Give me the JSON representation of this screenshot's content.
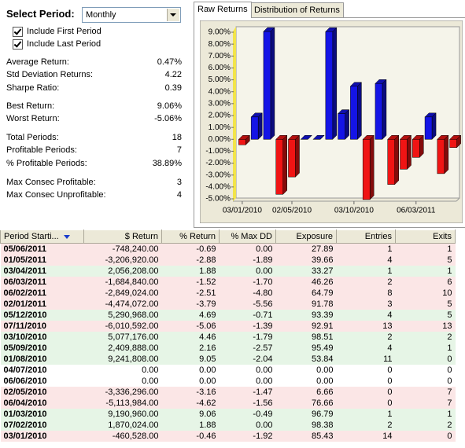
{
  "controls": {
    "period_label": "Select Period:",
    "period_value": "Monthly",
    "checkboxes": [
      "Include First Period",
      "Include Last Period"
    ]
  },
  "stats": [
    [
      [
        "Average Return:",
        "0.47%"
      ],
      [
        "Std Deviation Returns:",
        "4.22"
      ],
      [
        "Sharpe Ratio:",
        "0.39"
      ]
    ],
    [
      [
        "Best Return:",
        "9.06%"
      ],
      [
        "Worst Return:",
        "-5.06%"
      ]
    ],
    [
      [
        "Total Periods:",
        "18"
      ],
      [
        "Profitable Periods:",
        "7"
      ],
      [
        "% Profitable Periods:",
        "38.89%"
      ]
    ],
    [
      [
        "Max Consec Profitable:",
        "3"
      ],
      [
        "Max Consec Unprofitable:",
        "4"
      ]
    ]
  ],
  "tabs": [
    "Raw Returns",
    "Distribution of Returns"
  ],
  "chart_data": {
    "type": "bar3d",
    "categories": [
      "03/01/2010",
      null,
      null,
      null,
      "02/05/2010",
      null,
      null,
      null,
      null,
      "03/10/2010",
      null,
      null,
      null,
      null,
      "06/03/2011",
      null,
      null,
      null
    ],
    "values": [
      -0.46,
      1.88,
      9.06,
      -4.62,
      -3.16,
      0,
      0,
      9.05,
      2.16,
      4.46,
      -5.06,
      4.69,
      -3.79,
      -2.51,
      -1.52,
      1.88,
      -2.88,
      -0.69
    ],
    "positive_color": "#1414e6",
    "negative_color": "#f01414",
    "ylim": [
      -5,
      9
    ],
    "yticks": [
      {
        "value": 9,
        "label": "9.00%"
      },
      {
        "value": 8,
        "label": "8.00%"
      },
      {
        "value": 7,
        "label": "7.00%"
      },
      {
        "value": 6,
        "label": "6.00%"
      },
      {
        "value": 5,
        "label": "5.00%"
      },
      {
        "value": 4,
        "label": "4.00%"
      },
      {
        "value": 3,
        "label": "3.00%"
      },
      {
        "value": 2,
        "label": "2.00%"
      },
      {
        "value": 1,
        "label": "1.00%"
      },
      {
        "value": 0,
        "label": "0.00%"
      },
      {
        "value": -1,
        "label": "-1.00%"
      },
      {
        "value": -2,
        "label": "-2.00%"
      },
      {
        "value": -3,
        "label": "-3.00%"
      },
      {
        "value": -4,
        "label": "-4.00%"
      },
      {
        "value": -5,
        "label": "-5.00%"
      }
    ]
  },
  "table": {
    "columns": [
      "Period Starti...",
      "$ Return",
      "% Return",
      "% Max DD",
      "Exposure",
      "Entries",
      "Exits"
    ],
    "rows": [
      [
        "05/06/2011",
        "-748,240.00",
        "-0.69",
        "0.00",
        "27.89",
        "1",
        "1"
      ],
      [
        "01/05/2011",
        "-3,206,920.00",
        "-2.88",
        "-1.89",
        "39.66",
        "4",
        "5"
      ],
      [
        "03/04/2011",
        "2,056,208.00",
        "1.88",
        "0.00",
        "33.27",
        "1",
        "1"
      ],
      [
        "06/03/2011",
        "-1,684,840.00",
        "-1.52",
        "-1.70",
        "46.26",
        "2",
        "6"
      ],
      [
        "06/02/2011",
        "-2,849,024.00",
        "-2.51",
        "-4.80",
        "64.79",
        "8",
        "10"
      ],
      [
        "02/01/2011",
        "-4,474,072.00",
        "-3.79",
        "-5.56",
        "91.78",
        "3",
        "5"
      ],
      [
        "05/12/2010",
        "5,290,968.00",
        "4.69",
        "-0.71",
        "93.39",
        "4",
        "5"
      ],
      [
        "07/11/2010",
        "-6,010,592.00",
        "-5.06",
        "-1.39",
        "92.91",
        "13",
        "13"
      ],
      [
        "03/10/2010",
        "5,077,176.00",
        "4.46",
        "-1.79",
        "98.51",
        "2",
        "2"
      ],
      [
        "05/09/2010",
        "2,409,888.00",
        "2.16",
        "-2.57",
        "95.49",
        "4",
        "1"
      ],
      [
        "01/08/2010",
        "9,241,808.00",
        "9.05",
        "-2.04",
        "53.84",
        "11",
        "0"
      ],
      [
        "04/07/2010",
        "0.00",
        "0.00",
        "0.00",
        "0.00",
        "0",
        "0"
      ],
      [
        "06/06/2010",
        "0.00",
        "0.00",
        "0.00",
        "0.00",
        "0",
        "0"
      ],
      [
        "02/05/2010",
        "-3,336,296.00",
        "-3.16",
        "-1.47",
        "6.66",
        "0",
        "7"
      ],
      [
        "06/04/2010",
        "-5,113,984.00",
        "-4.62",
        "-1.56",
        "76.66",
        "0",
        "7"
      ],
      [
        "01/03/2010",
        "9,190,960.00",
        "9.06",
        "-0.49",
        "96.79",
        "1",
        "1"
      ],
      [
        "07/02/2010",
        "1,870,024.00",
        "1.88",
        "0.00",
        "98.38",
        "2",
        "2"
      ],
      [
        "03/01/2010",
        "-460,528.00",
        "-0.46",
        "-1.92",
        "85.43",
        "14",
        "0"
      ]
    ]
  }
}
